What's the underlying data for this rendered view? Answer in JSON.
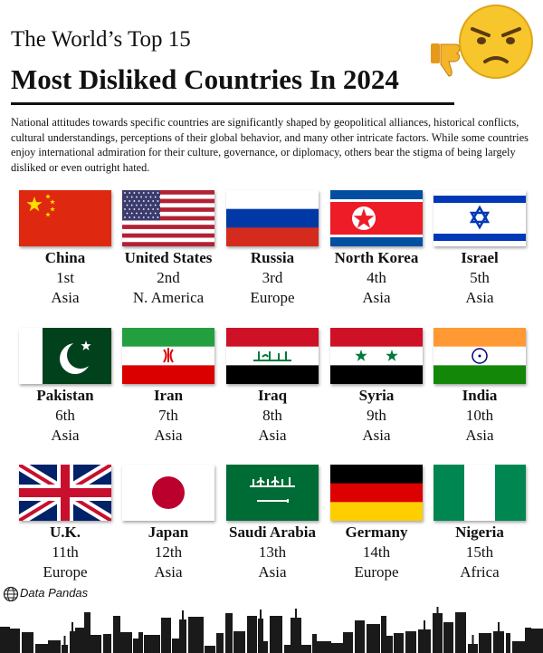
{
  "header": {
    "title_line1": "The World’s Top 15",
    "title_line2": "Most Disliked Countries In 2024"
  },
  "description": "National attitudes towards specific countries are significantly shaped by geopolitical alliances, historical conflicts, cultural understandings, perceptions of their global behavior, and many other intricate factors. While some countries enjoy international admiration for their culture, governance, or diplomacy, others bear the stigma of being largely disliked or even outright hated.",
  "countries": [
    {
      "name": "China",
      "rank": "1st",
      "region": "Asia"
    },
    {
      "name": "United States",
      "rank": "2nd",
      "region": "N. America"
    },
    {
      "name": "Russia",
      "rank": "3rd",
      "region": "Europe"
    },
    {
      "name": "North Korea",
      "rank": "4th",
      "region": "Asia"
    },
    {
      "name": "Israel",
      "rank": "5th",
      "region": "Asia"
    },
    {
      "name": "Pakistan",
      "rank": "6th",
      "region": "Asia"
    },
    {
      "name": "Iran",
      "rank": "7th",
      "region": "Asia"
    },
    {
      "name": "Iraq",
      "rank": "8th",
      "region": "Asia"
    },
    {
      "name": "Syria",
      "rank": "9th",
      "region": "Asia"
    },
    {
      "name": "India",
      "rank": "10th",
      "region": "Asia"
    },
    {
      "name": "U.K.",
      "rank": "11th",
      "region": "Europe"
    },
    {
      "name": "Japan",
      "rank": "12th",
      "region": "Asia"
    },
    {
      "name": "Saudi Arabia",
      "rank": "13th",
      "region": "Asia"
    },
    {
      "name": "Germany",
      "rank": "14th",
      "region": "Europe"
    },
    {
      "name": "Nigeria",
      "rank": "15th",
      "region": "Africa"
    }
  ],
  "source": "Data Pandas"
}
